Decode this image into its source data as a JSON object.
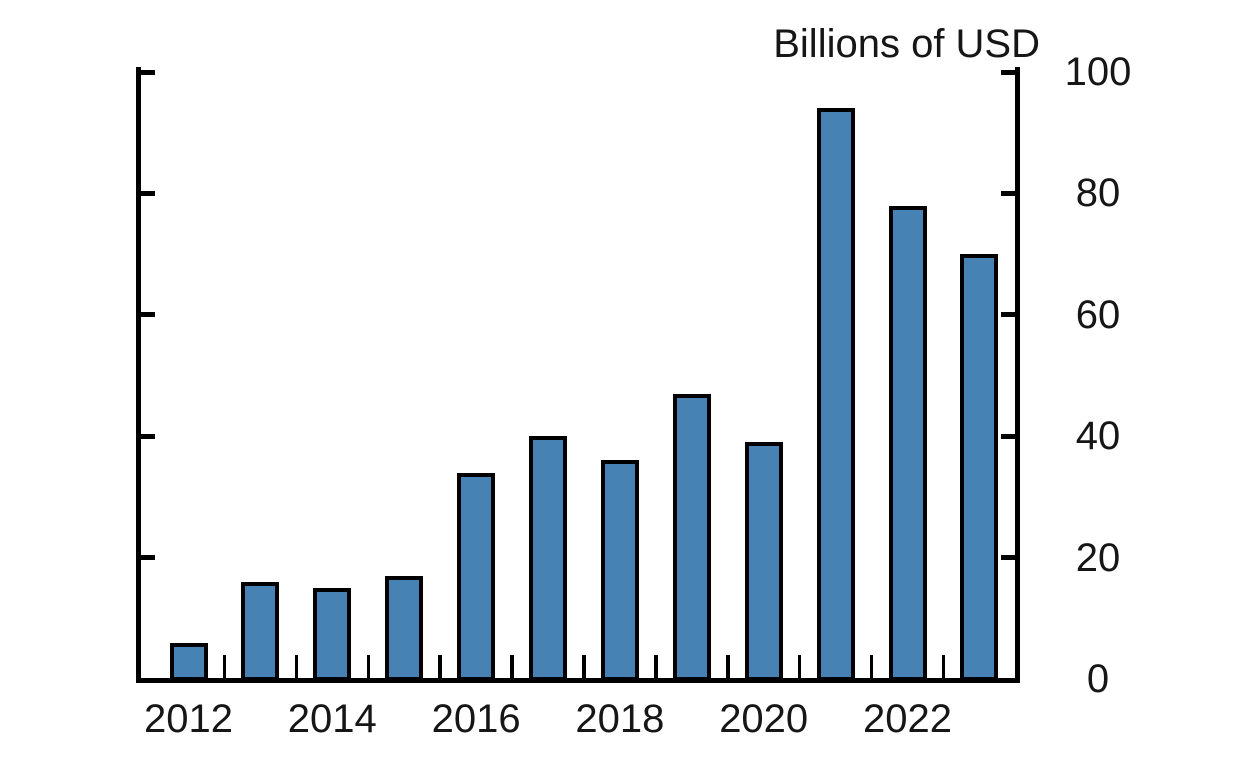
{
  "chart_data": {
    "type": "bar",
    "title": "Billions of USD",
    "ylabel": "Billions of USD",
    "xlabel": "",
    "categories": [
      "2012",
      "2013",
      "2014",
      "2015",
      "2016",
      "2017",
      "2018",
      "2019",
      "2020",
      "2021",
      "2022",
      "2023"
    ],
    "values": [
      6,
      16,
      15,
      17,
      34,
      40,
      36,
      47,
      39,
      94,
      78,
      70
    ],
    "ylim": [
      0,
      100
    ],
    "yticks": [
      0,
      20,
      40,
      60,
      80,
      100
    ],
    "xtick_labels": [
      "2012",
      "2014",
      "2016",
      "2018",
      "2020",
      "2022"
    ],
    "legend": null,
    "grid": false,
    "legend_position": "none",
    "colors": {
      "bar_fill": "#4682b4",
      "bar_border": "#000000",
      "axis": "#000000",
      "text": "#161616",
      "background": "#ffffff"
    }
  }
}
